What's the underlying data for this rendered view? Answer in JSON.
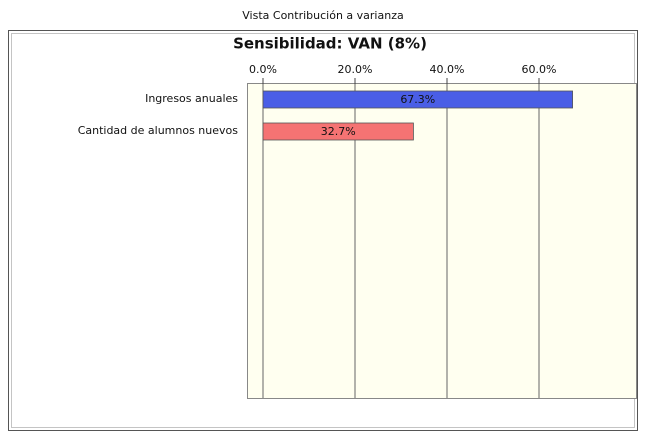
{
  "window_title": "Vista Contribución a varianza",
  "chart_data": {
    "type": "hbar",
    "title": "Sensibilidad: VAN (8%)",
    "categories": [
      "Ingresos anuales",
      "Cantidad de alumnos nuevos"
    ],
    "values": [
      67.3,
      32.7
    ],
    "value_labels": [
      "67.3%",
      "32.7%"
    ],
    "colors": [
      "#4a5ee6",
      "#f57373"
    ],
    "xlim": [
      0,
      80
    ],
    "xticks": [
      {
        "value": 0,
        "label": "0.0%"
      },
      {
        "value": 20,
        "label": "20.0%"
      },
      {
        "value": 40,
        "label": "40.0%"
      },
      {
        "value": 60,
        "label": "60.0%"
      }
    ],
    "grid": true
  }
}
